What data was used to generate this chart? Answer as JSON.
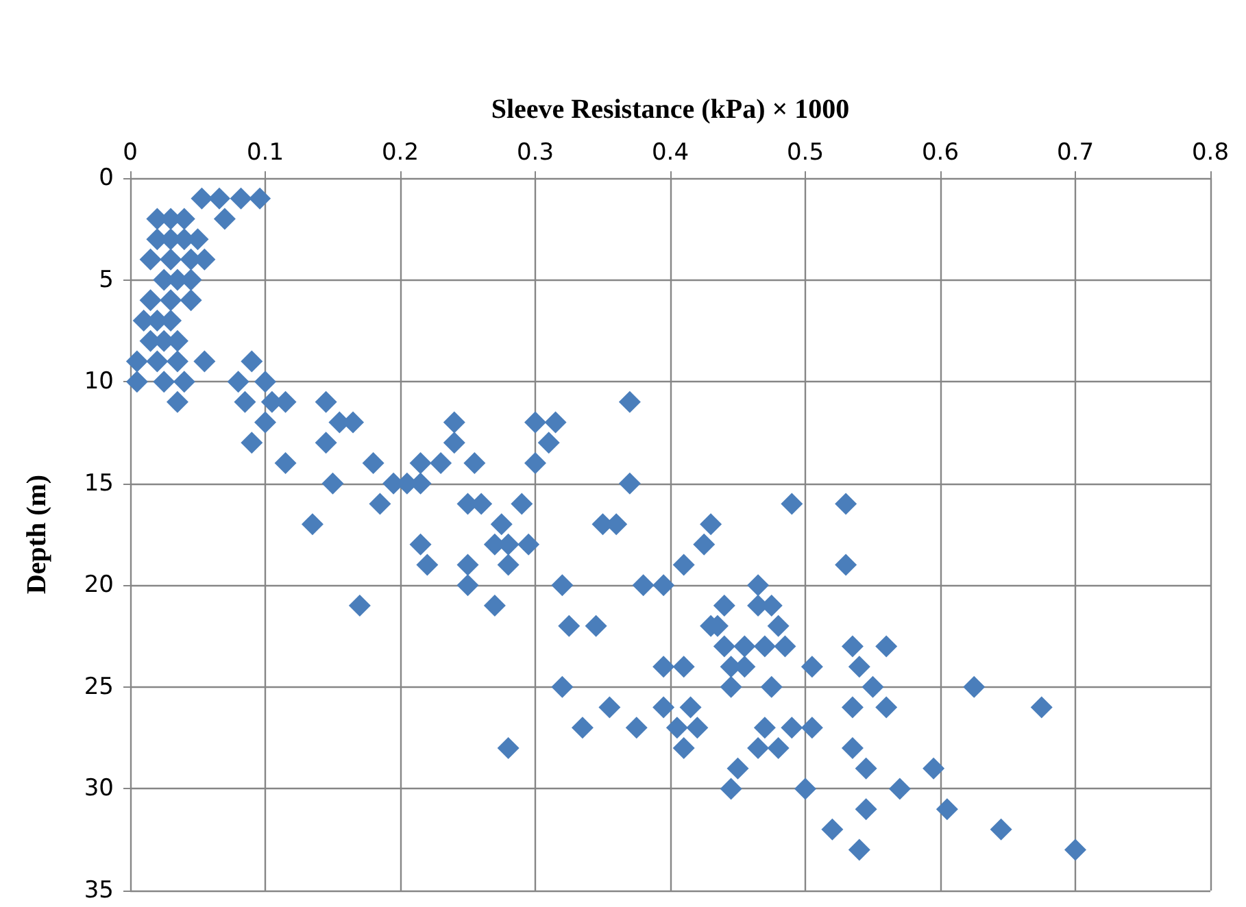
{
  "chart_data": {
    "type": "scatter",
    "xlabel": "Sleeve Resistance (kPa) × 1000",
    "ylabel": "Depth (m)",
    "x": [
      0.053,
      0.066,
      0.082,
      0.096,
      0.02,
      0.03,
      0.04,
      0.07,
      0.02,
      0.03,
      0.04,
      0.05,
      0.015,
      0.03,
      0.045,
      0.055,
      0.025,
      0.035,
      0.045,
      0.015,
      0.03,
      0.045,
      0.01,
      0.02,
      0.03,
      0.015,
      0.025,
      0.035,
      0.005,
      0.02,
      0.035,
      0.055,
      0.09,
      0.005,
      0.025,
      0.04,
      0.08,
      0.1,
      0.035,
      0.085,
      0.105,
      0.115,
      0.145,
      0.37,
      0.1,
      0.155,
      0.165,
      0.24,
      0.3,
      0.315,
      0.09,
      0.145,
      0.24,
      0.31,
      0.115,
      0.18,
      0.215,
      0.23,
      0.255,
      0.3,
      0.15,
      0.195,
      0.205,
      0.215,
      0.37,
      0.185,
      0.25,
      0.26,
      0.29,
      0.49,
      0.53,
      0.135,
      0.275,
      0.35,
      0.36,
      0.43,
      0.215,
      0.27,
      0.28,
      0.295,
      0.425,
      0.22,
      0.25,
      0.28,
      0.41,
      0.53,
      0.25,
      0.32,
      0.38,
      0.395,
      0.465,
      0.17,
      0.27,
      0.44,
      0.465,
      0.475,
      0.325,
      0.345,
      0.43,
      0.435,
      0.48,
      0.44,
      0.455,
      0.47,
      0.485,
      0.535,
      0.56,
      0.395,
      0.41,
      0.445,
      0.455,
      0.505,
      0.54,
      0.32,
      0.445,
      0.475,
      0.55,
      0.625,
      0.355,
      0.395,
      0.415,
      0.535,
      0.56,
      0.675,
      0.335,
      0.375,
      0.405,
      0.42,
      0.47,
      0.49,
      0.505,
      0.28,
      0.41,
      0.465,
      0.48,
      0.535,
      0.45,
      0.545,
      0.595,
      0.445,
      0.5,
      0.57,
      0.545,
      0.605,
      0.52,
      0.645,
      0.54,
      0.7
    ],
    "values": [
      1,
      1,
      1,
      1,
      2,
      2,
      2,
      2,
      3,
      3,
      3,
      3,
      4,
      4,
      4,
      4,
      5,
      5,
      5,
      6,
      6,
      6,
      7,
      7,
      7,
      8,
      8,
      8,
      9,
      9,
      9,
      9,
      9,
      10,
      10,
      10,
      10,
      10,
      11,
      11,
      11,
      11,
      11,
      11,
      12,
      12,
      12,
      12,
      12,
      12,
      13,
      13,
      13,
      13,
      14,
      14,
      14,
      14,
      14,
      14,
      15,
      15,
      15,
      15,
      15,
      16,
      16,
      16,
      16,
      16,
      16,
      17,
      17,
      17,
      17,
      17,
      18,
      18,
      18,
      18,
      18,
      19,
      19,
      19,
      19,
      19,
      20,
      20,
      20,
      20,
      20,
      21,
      21,
      21,
      21,
      21,
      22,
      22,
      22,
      22,
      22,
      23,
      23,
      23,
      23,
      23,
      23,
      24,
      24,
      24,
      24,
      24,
      24,
      25,
      25,
      25,
      25,
      25,
      26,
      26,
      26,
      26,
      26,
      26,
      27,
      27,
      27,
      27,
      27,
      27,
      27,
      28,
      28,
      28,
      28,
      28,
      29,
      29,
      29,
      30,
      30,
      30,
      31,
      31,
      32,
      32,
      33,
      33
    ],
    "color": "#4a7ebb",
    "marker": "diamond",
    "xlim": [
      0,
      0.8
    ],
    "xticks": [
      0,
      0.1,
      0.2,
      0.3,
      0.4,
      0.5,
      0.6,
      0.7,
      0.8
    ],
    "ylim": [
      35,
      0
    ],
    "yticks": [
      0,
      5,
      10,
      15,
      20,
      25,
      30,
      35
    ],
    "grid": true
  }
}
